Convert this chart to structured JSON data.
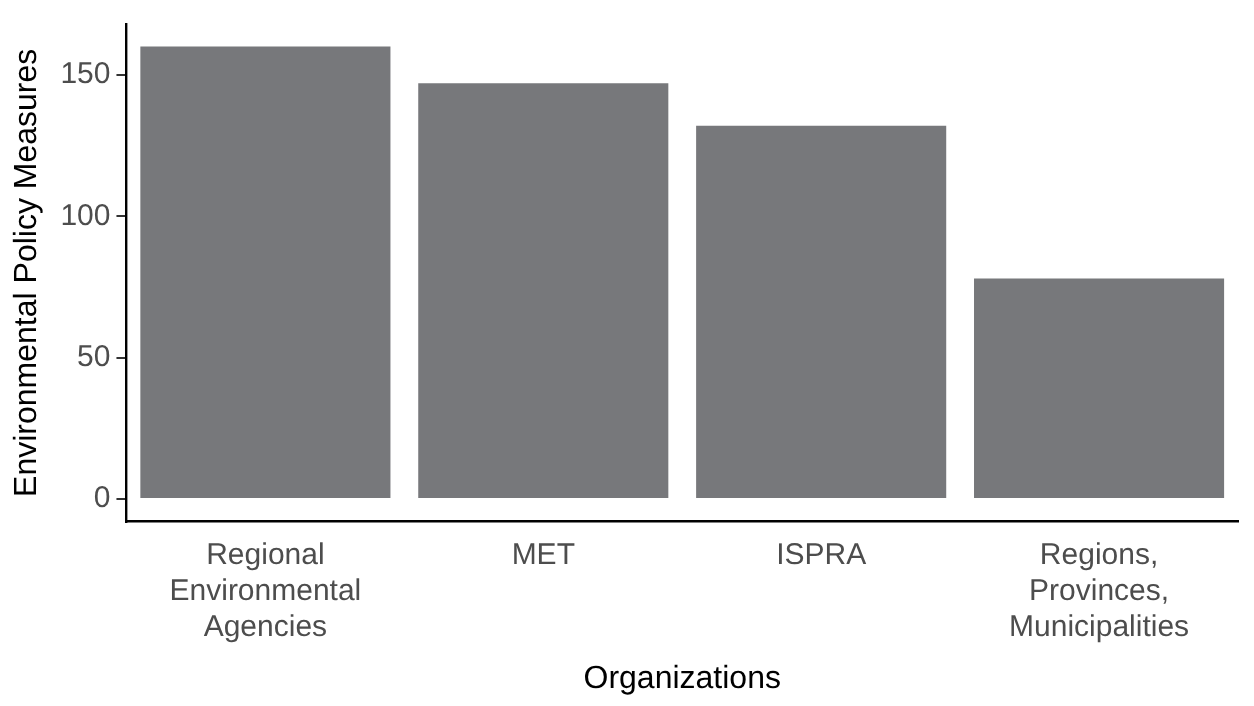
{
  "chart_data": {
    "type": "bar",
    "xlabel": "Organizations",
    "ylabel": "Environmental Policy Measures",
    "categories": [
      "Regional Environmental Agencies",
      "MET",
      "ISPRA",
      "Regions, Provinces, Municipalities"
    ],
    "values": [
      160,
      147,
      132,
      78
    ],
    "color": "#77787b",
    "ylim": [
      -8,
      168
    ],
    "yticks": [
      0,
      50,
      100,
      150
    ],
    "grid": false,
    "legend": false
  }
}
